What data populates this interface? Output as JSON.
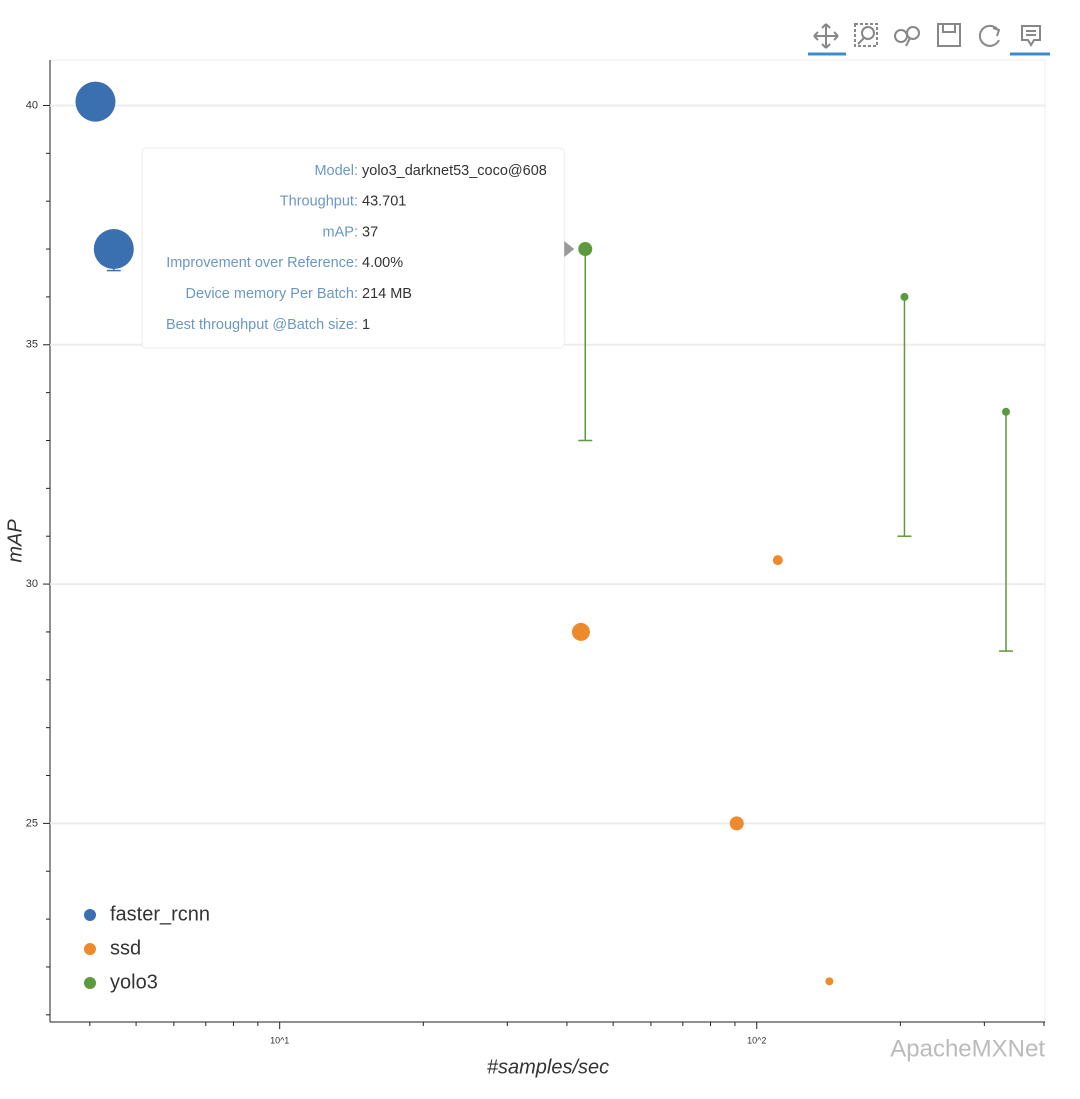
{
  "chart_data": {
    "type": "scatter",
    "x_label": "#samples/sec",
    "y_label": "mAP",
    "x_log": true,
    "xlim": [
      3.3,
      402
    ],
    "ylim": [
      20.85,
      40.95
    ],
    "xticks": [
      {
        "value": 10,
        "label": "10^1"
      },
      {
        "value": 100,
        "label": "10^2"
      }
    ],
    "xminor_ticks": [
      4,
      5,
      6,
      7,
      8,
      9,
      20,
      30,
      40,
      50,
      60,
      70,
      80,
      90,
      200,
      300,
      400
    ],
    "yticks": [
      25,
      30,
      35,
      40
    ],
    "yminor_ticks": [
      21,
      22,
      23,
      24,
      26,
      27,
      28,
      29,
      31,
      32,
      33,
      34,
      36,
      37,
      38,
      39
    ],
    "grid": true,
    "legend_position": "bottom_left",
    "series": [
      {
        "name": "faster_rcnn",
        "color": "#3b70b0",
        "x": [
          4.11,
          4.49
        ],
        "values": [
          40.08,
          37
        ],
        "sizes": [
          20,
          20
        ],
        "lower": [
          null,
          36.55
        ]
      },
      {
        "name": "ssd",
        "color": "#ef8a2c",
        "x": [
          42.8,
          110.7,
          90.8,
          142
        ],
        "values": [
          29,
          30.5,
          25,
          21.7
        ],
        "sizes": [
          9,
          5,
          7,
          4
        ],
        "lower": [
          null,
          null,
          null,
          null
        ]
      },
      {
        "name": "yolo3",
        "color": "#5b9a3d",
        "x": [
          43.701,
          204,
          333
        ],
        "values": [
          37,
          36,
          33.6
        ],
        "sizes": [
          7,
          4,
          4
        ],
        "lower": [
          33,
          31,
          28.6
        ]
      }
    ],
    "tooltip": {
      "labels": [
        "Model:",
        "Throughput:",
        "mAP:",
        "Improvement over Reference:",
        "Device memory Per Batch:",
        "Best throughput @Batch size:"
      ],
      "values": [
        "yolo3_darknet53_coco@608",
        "43.701",
        "37",
        "4.00%",
        "214 MB",
        "1"
      ]
    },
    "watermark": "ApacheMXNet"
  }
}
